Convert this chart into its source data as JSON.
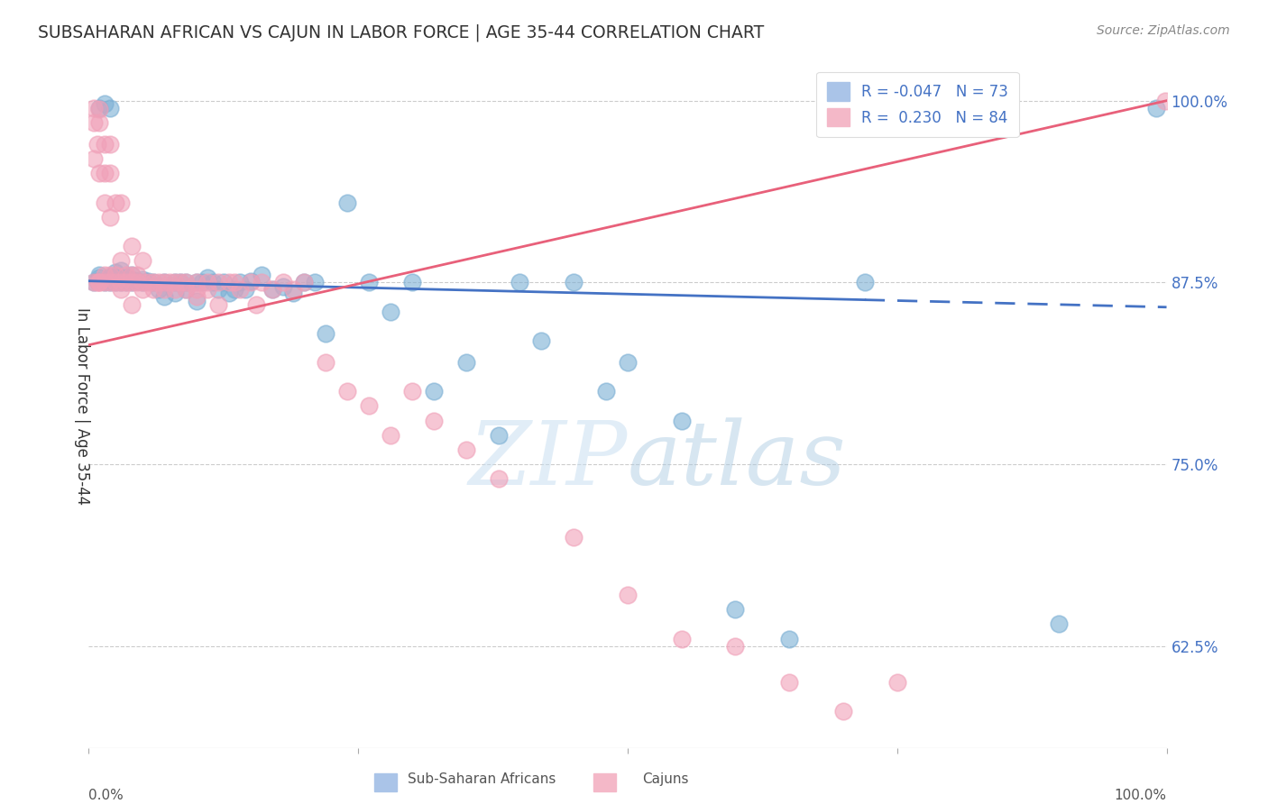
{
  "title": "SUBSAHARAN AFRICAN VS CAJUN IN LABOR FORCE | AGE 35-44 CORRELATION CHART",
  "source": "Source: ZipAtlas.com",
  "ylabel": "In Labor Force | Age 35-44",
  "ytick_values": [
    0.625,
    0.75,
    0.875,
    1.0
  ],
  "xlim": [
    0.0,
    1.0
  ],
  "ylim": [
    0.555,
    1.025
  ],
  "watermark": "ZIPatlas",
  "blue_color": "#7bafd4",
  "pink_color": "#f0a0b8",
  "blue_line_color": "#4472c4",
  "pink_line_color": "#e8607a",
  "grid_color": "#cccccc",
  "grid_style": "--",
  "blue_R": -0.047,
  "blue_N": 73,
  "pink_R": 0.23,
  "pink_N": 84,
  "blue_line_start_y": 0.876,
  "blue_line_end_y": 0.858,
  "pink_line_start_y": 0.832,
  "pink_line_end_y": 1.0,
  "blue_solid_cutoff": 0.72,
  "blue_scatter_x": [
    0.005,
    0.008,
    0.01,
    0.01,
    0.01,
    0.015,
    0.015,
    0.015,
    0.02,
    0.02,
    0.02,
    0.02,
    0.025,
    0.025,
    0.025,
    0.03,
    0.03,
    0.03,
    0.035,
    0.035,
    0.04,
    0.04,
    0.04,
    0.045,
    0.05,
    0.05,
    0.055,
    0.06,
    0.065,
    0.07,
    0.07,
    0.08,
    0.08,
    0.085,
    0.09,
    0.09,
    0.1,
    0.1,
    0.105,
    0.11,
    0.115,
    0.12,
    0.125,
    0.13,
    0.135,
    0.14,
    0.145,
    0.15,
    0.16,
    0.17,
    0.18,
    0.19,
    0.2,
    0.21,
    0.22,
    0.24,
    0.26,
    0.28,
    0.3,
    0.32,
    0.35,
    0.38,
    0.4,
    0.42,
    0.45,
    0.48,
    0.5,
    0.55,
    0.6,
    0.65,
    0.72,
    0.9,
    0.99
  ],
  "blue_scatter_y": [
    0.875,
    0.876,
    0.878,
    0.88,
    0.995,
    0.875,
    0.876,
    0.998,
    0.875,
    0.877,
    0.879,
    0.995,
    0.875,
    0.878,
    0.882,
    0.875,
    0.876,
    0.883,
    0.875,
    0.878,
    0.875,
    0.877,
    0.88,
    0.876,
    0.875,
    0.877,
    0.876,
    0.875,
    0.87,
    0.875,
    0.865,
    0.875,
    0.868,
    0.875,
    0.875,
    0.87,
    0.875,
    0.862,
    0.875,
    0.878,
    0.875,
    0.87,
    0.875,
    0.868,
    0.87,
    0.875,
    0.87,
    0.876,
    0.88,
    0.87,
    0.872,
    0.868,
    0.875,
    0.875,
    0.84,
    0.93,
    0.875,
    0.855,
    0.875,
    0.8,
    0.82,
    0.77,
    0.875,
    0.835,
    0.875,
    0.8,
    0.82,
    0.78,
    0.65,
    0.63,
    0.875,
    0.64,
    0.995
  ],
  "pink_scatter_x": [
    0.005,
    0.005,
    0.005,
    0.005,
    0.008,
    0.008,
    0.01,
    0.01,
    0.01,
    0.01,
    0.01,
    0.015,
    0.015,
    0.015,
    0.015,
    0.015,
    0.02,
    0.02,
    0.02,
    0.02,
    0.02,
    0.025,
    0.025,
    0.025,
    0.03,
    0.03,
    0.03,
    0.03,
    0.035,
    0.035,
    0.04,
    0.04,
    0.04,
    0.04,
    0.045,
    0.045,
    0.05,
    0.05,
    0.05,
    0.055,
    0.06,
    0.06,
    0.065,
    0.07,
    0.07,
    0.075,
    0.08,
    0.08,
    0.085,
    0.09,
    0.09,
    0.1,
    0.1,
    0.1,
    0.11,
    0.11,
    0.12,
    0.12,
    0.13,
    0.135,
    0.14,
    0.15,
    0.155,
    0.16,
    0.17,
    0.18,
    0.19,
    0.2,
    0.22,
    0.24,
    0.26,
    0.28,
    0.3,
    0.32,
    0.35,
    0.38,
    0.45,
    0.5,
    0.55,
    0.6,
    0.65,
    0.7,
    0.75,
    0.999
  ],
  "pink_scatter_y": [
    0.875,
    0.96,
    0.985,
    0.995,
    0.875,
    0.97,
    0.875,
    0.875,
    0.95,
    0.985,
    0.994,
    0.875,
    0.88,
    0.93,
    0.95,
    0.97,
    0.875,
    0.88,
    0.92,
    0.95,
    0.97,
    0.875,
    0.88,
    0.93,
    0.875,
    0.87,
    0.89,
    0.93,
    0.875,
    0.88,
    0.875,
    0.88,
    0.86,
    0.9,
    0.875,
    0.88,
    0.875,
    0.87,
    0.89,
    0.875,
    0.875,
    0.87,
    0.875,
    0.875,
    0.87,
    0.875,
    0.875,
    0.87,
    0.875,
    0.875,
    0.87,
    0.875,
    0.87,
    0.865,
    0.875,
    0.87,
    0.875,
    0.86,
    0.875,
    0.875,
    0.87,
    0.875,
    0.86,
    0.875,
    0.87,
    0.875,
    0.87,
    0.875,
    0.82,
    0.8,
    0.79,
    0.77,
    0.8,
    0.78,
    0.76,
    0.74,
    0.7,
    0.66,
    0.63,
    0.625,
    0.6,
    0.58,
    0.6,
    1.0
  ]
}
